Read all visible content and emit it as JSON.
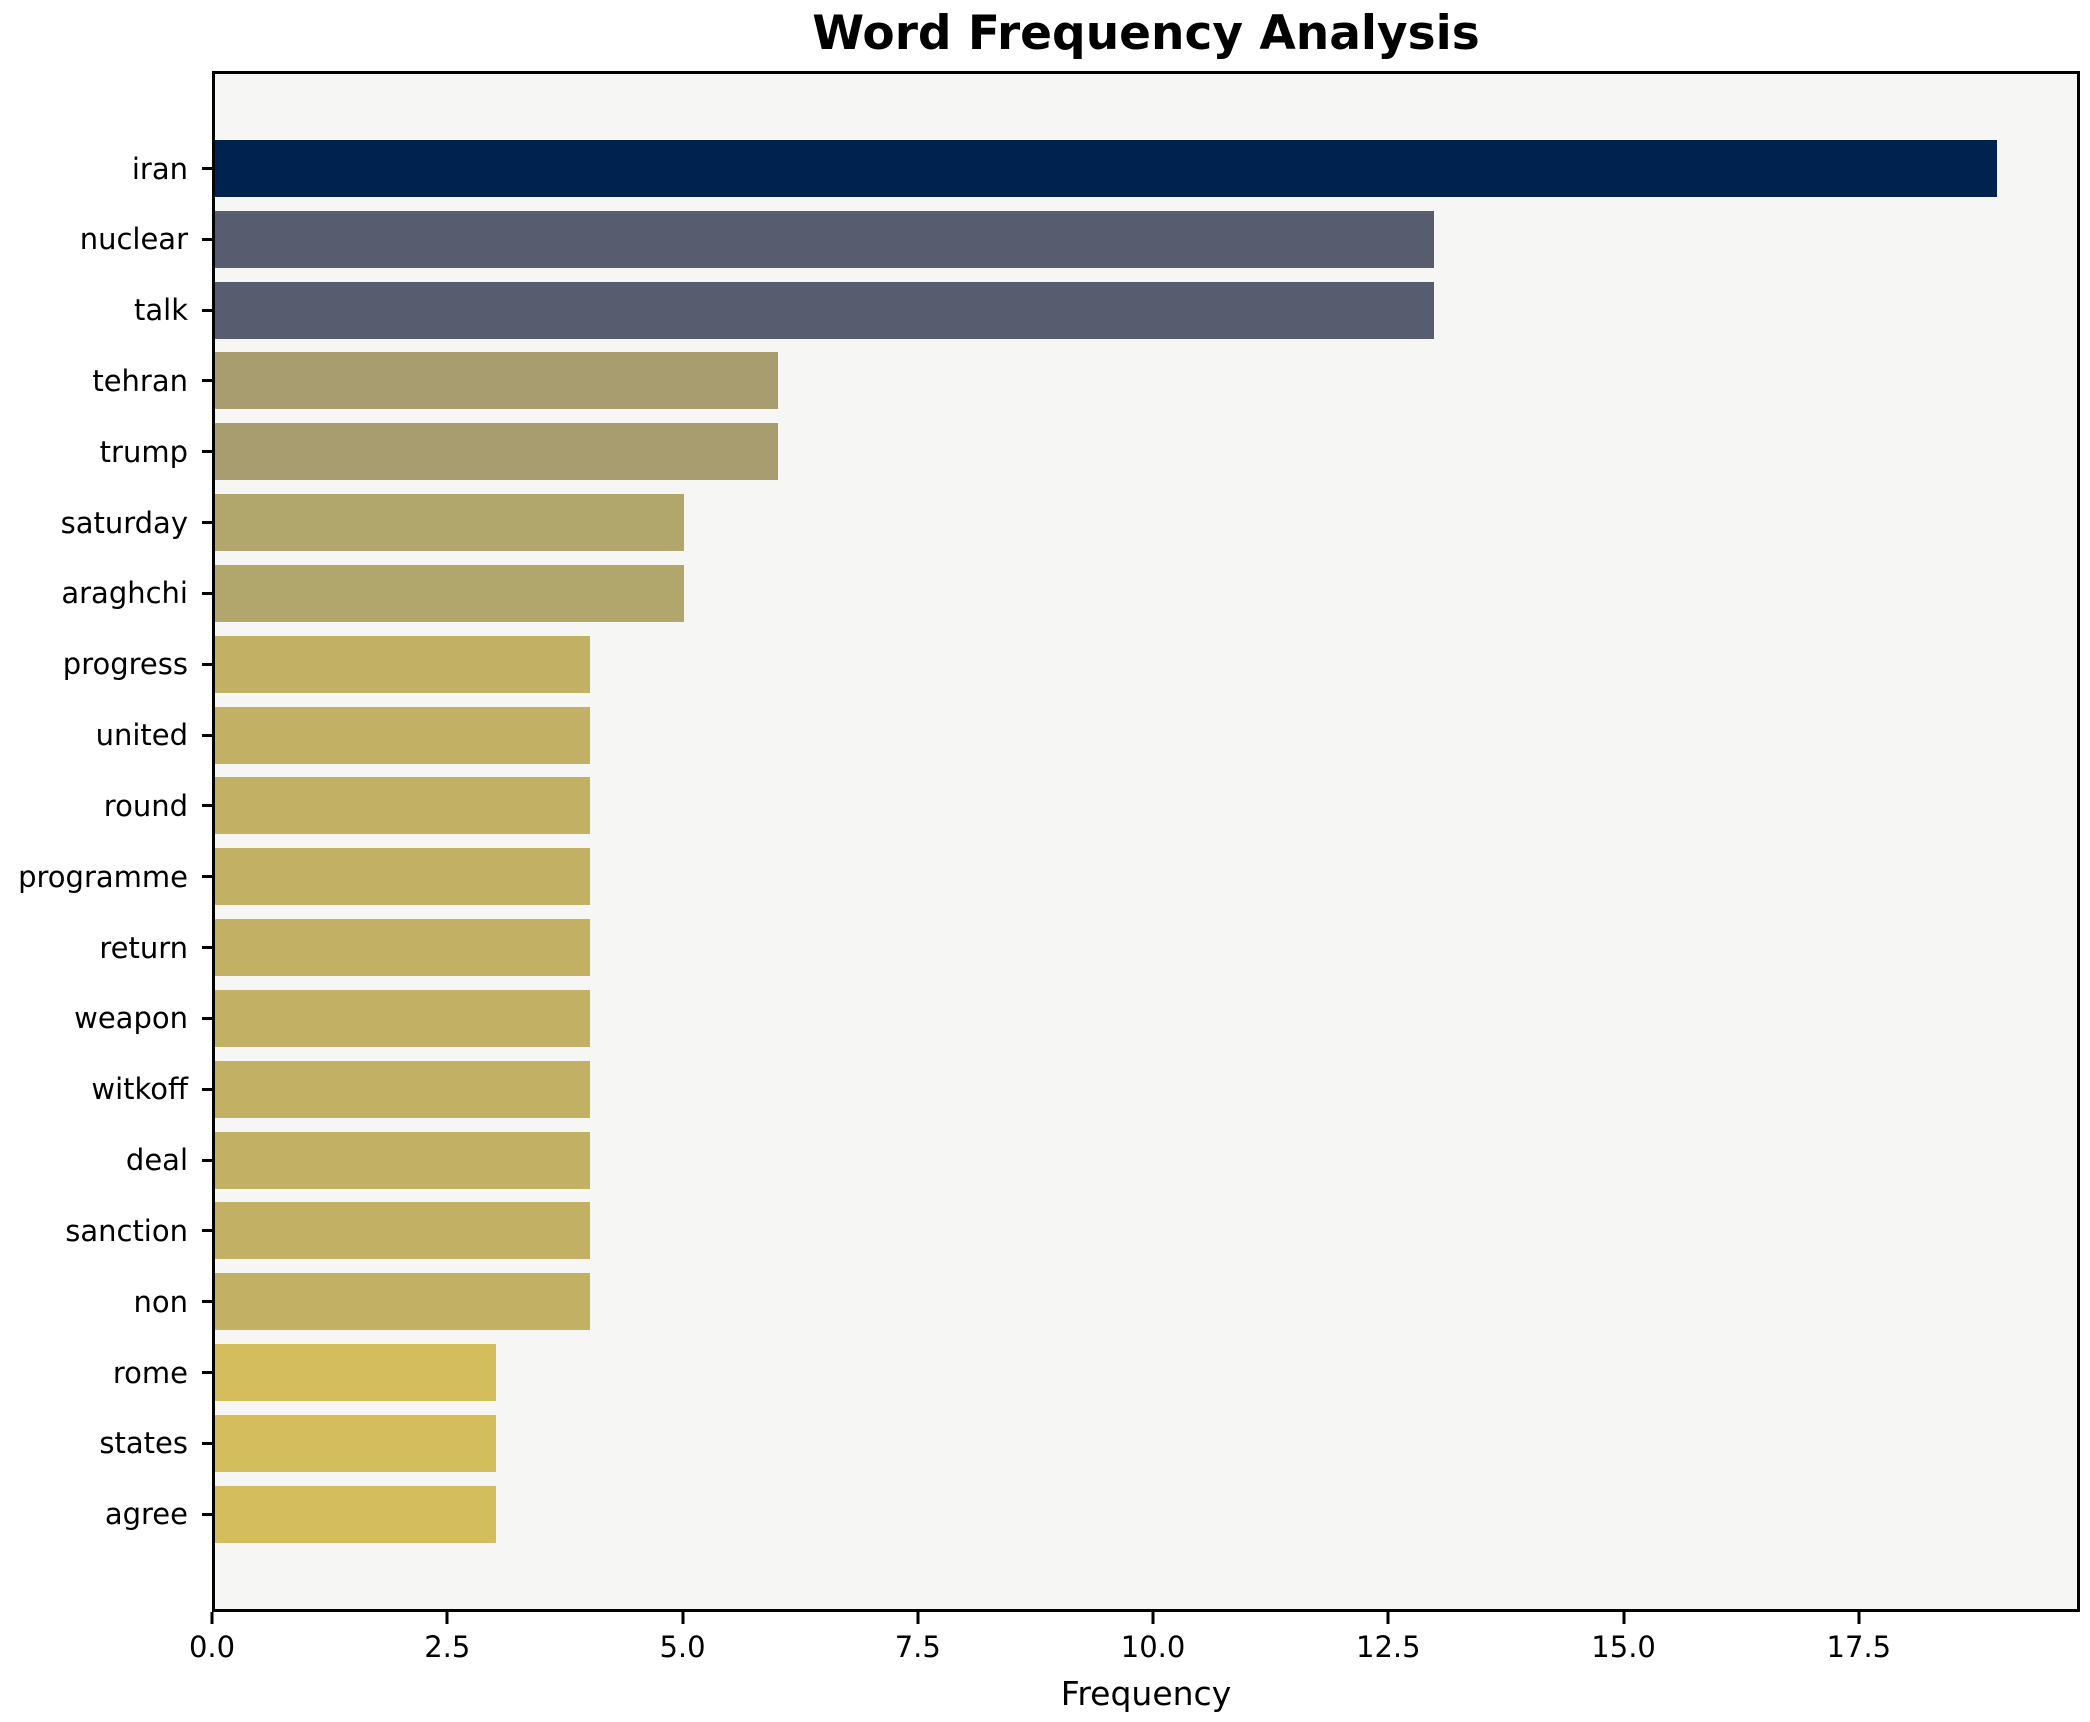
{
  "chart_data": {
    "type": "bar",
    "orientation": "horizontal",
    "title": "Word Frequency Analysis",
    "xlabel": "Frequency",
    "ylabel": "",
    "categories": [
      "iran",
      "nuclear",
      "talk",
      "tehran",
      "trump",
      "saturday",
      "araghchi",
      "progress",
      "united",
      "round",
      "programme",
      "return",
      "weapon",
      "witkoff",
      "deal",
      "sanction",
      "non",
      "rome",
      "states",
      "agree"
    ],
    "values": [
      19,
      13,
      13,
      6,
      6,
      5,
      5,
      4,
      4,
      4,
      4,
      4,
      4,
      4,
      4,
      4,
      4,
      3,
      3,
      3
    ],
    "bar_colors": [
      "#00224e",
      "#575d6f",
      "#575d6f",
      "#a89d6e",
      "#a89d6e",
      "#b1a66b",
      "#b1a66b",
      "#c2b164",
      "#c2b164",
      "#c2b164",
      "#c2b164",
      "#c2b164",
      "#c2b164",
      "#c2b164",
      "#c2b164",
      "#c2b164",
      "#c2b164",
      "#d3bd5c",
      "#d3bd5c",
      "#d3bd5c"
    ],
    "xlim": [
      0,
      19.85
    ],
    "x_ticks": [
      0,
      2.5,
      5,
      7.5,
      10,
      12.5,
      15,
      17.5
    ],
    "x_tick_labels": [
      "0.0",
      "2.5",
      "5.0",
      "7.5",
      "10.0",
      "12.5",
      "15.0",
      "17.5"
    ],
    "grid": false,
    "legend": false,
    "plot_background": "#f6f6f4",
    "figure_background": "#ffffff",
    "spine_color": "#000000",
    "title_color": "#000000"
  }
}
